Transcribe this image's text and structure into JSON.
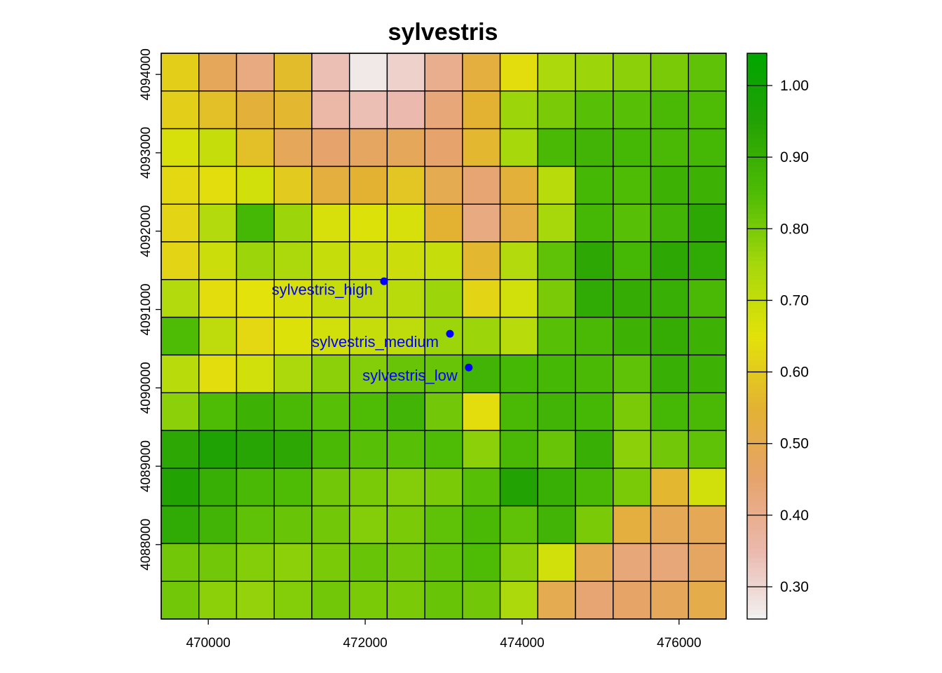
{
  "chart_data": {
    "type": "heatmap",
    "title": "sylvestris",
    "xlim": [
      469400,
      476600
    ],
    "ylim": [
      4087050,
      4094270
    ],
    "x_ticks": [
      {
        "value": 470000,
        "label": "470000"
      },
      {
        "value": 472000,
        "label": "472000"
      },
      {
        "value": 474000,
        "label": "474000"
      },
      {
        "value": 476000,
        "label": "476000"
      }
    ],
    "y_ticks": [
      {
        "value": 4088000,
        "label": "4088000"
      },
      {
        "value": 4089000,
        "label": "4089000"
      },
      {
        "value": 4090000,
        "label": "4090000"
      },
      {
        "value": 4091000,
        "label": "4091000"
      },
      {
        "value": 4092000,
        "label": "4092000"
      },
      {
        "value": 4093000,
        "label": "4093000"
      },
      {
        "value": 4094000,
        "label": "4094000"
      }
    ],
    "grid": {
      "x_min": 469400,
      "x_max": 476600,
      "y_min": 4087050,
      "y_max": 4094270,
      "ncols": 15,
      "nrows": 15
    },
    "values": [
      [
        0.61,
        0.48,
        0.42,
        0.57,
        0.34,
        0.27,
        0.31,
        0.4,
        0.53,
        0.64,
        0.74,
        0.76,
        0.78,
        0.8,
        0.83
      ],
      [
        0.61,
        0.58,
        0.54,
        0.56,
        0.36,
        0.34,
        0.35,
        0.43,
        0.55,
        0.76,
        0.8,
        0.84,
        0.84,
        0.86,
        0.85
      ],
      [
        0.67,
        0.7,
        0.58,
        0.48,
        0.45,
        0.47,
        0.48,
        0.45,
        0.56,
        0.75,
        0.86,
        0.88,
        0.87,
        0.86,
        0.87
      ],
      [
        0.63,
        0.64,
        0.68,
        0.6,
        0.53,
        0.55,
        0.59,
        0.5,
        0.44,
        0.54,
        0.72,
        0.87,
        0.85,
        0.89,
        0.89
      ],
      [
        0.62,
        0.73,
        0.87,
        0.76,
        0.67,
        0.66,
        0.67,
        0.55,
        0.42,
        0.52,
        0.75,
        0.87,
        0.84,
        0.88,
        0.93
      ],
      [
        0.62,
        0.69,
        0.76,
        0.74,
        0.7,
        0.69,
        0.69,
        0.7,
        0.56,
        0.73,
        0.83,
        0.93,
        0.87,
        0.93,
        0.92
      ],
      [
        0.73,
        0.64,
        0.65,
        0.67,
        0.7,
        0.71,
        0.72,
        0.76,
        0.62,
        0.68,
        0.8,
        0.92,
        0.91,
        0.9,
        0.86
      ],
      [
        0.85,
        0.71,
        0.63,
        0.66,
        0.68,
        0.7,
        0.71,
        0.76,
        0.76,
        0.72,
        0.84,
        0.86,
        0.89,
        0.91,
        0.89
      ],
      [
        0.72,
        0.64,
        0.68,
        0.74,
        0.78,
        0.79,
        0.82,
        0.82,
        0.88,
        0.87,
        0.87,
        0.86,
        0.83,
        0.9,
        0.89
      ],
      [
        0.78,
        0.85,
        0.89,
        0.86,
        0.84,
        0.85,
        0.88,
        0.81,
        0.64,
        0.86,
        0.88,
        0.87,
        0.8,
        0.87,
        0.86
      ],
      [
        0.93,
        0.96,
        0.94,
        0.93,
        0.86,
        0.84,
        0.84,
        0.85,
        0.78,
        0.86,
        0.82,
        0.9,
        0.78,
        0.81,
        0.83
      ],
      [
        0.95,
        0.9,
        0.86,
        0.85,
        0.81,
        0.8,
        0.79,
        0.8,
        0.84,
        0.95,
        0.9,
        0.86,
        0.8,
        0.56,
        0.68
      ],
      [
        0.92,
        0.88,
        0.83,
        0.82,
        0.81,
        0.79,
        0.8,
        0.83,
        0.86,
        0.83,
        0.88,
        0.8,
        0.53,
        0.49,
        0.49
      ],
      [
        0.81,
        0.81,
        0.79,
        0.78,
        0.8,
        0.82,
        0.81,
        0.83,
        0.85,
        0.78,
        0.68,
        0.5,
        0.43,
        0.43,
        0.47
      ],
      [
        0.81,
        0.78,
        0.77,
        0.79,
        0.81,
        0.8,
        0.8,
        0.82,
        0.81,
        0.74,
        0.5,
        0.44,
        0.46,
        0.48,
        0.51
      ]
    ],
    "points": [
      {
        "label": "sylvestris_high",
        "x": 472240,
        "y": 4091360
      },
      {
        "label": "sylvestris_medium",
        "x": 473080,
        "y": 4090690
      },
      {
        "label": "sylvestris_low",
        "x": 473320,
        "y": 4090260
      }
    ],
    "point_color": "#0000ff",
    "legend": {
      "min": 0.255,
      "max": 1.045,
      "breaks": [
        0.3,
        0.4,
        0.5,
        0.6,
        0.7,
        0.8,
        0.9,
        1.0
      ],
      "labels": [
        "0.30",
        "0.40",
        "0.50",
        "0.60",
        "0.70",
        "0.80",
        "0.90",
        "1.00"
      ],
      "position": "right"
    },
    "color_scale": [
      {
        "value": 0.255,
        "color": "#f2f2f2"
      },
      {
        "value": 0.35,
        "color": "#ebb9ae"
      },
      {
        "value": 0.45,
        "color": "#e6a36c"
      },
      {
        "value": 0.55,
        "color": "#e3b233"
      },
      {
        "value": 0.65,
        "color": "#e3e20a"
      },
      {
        "value": 0.75,
        "color": "#a6d80c"
      },
      {
        "value": 0.85,
        "color": "#4ebc05"
      },
      {
        "value": 0.95,
        "color": "#23a204"
      },
      {
        "value": 1.045,
        "color": "#00a600"
      }
    ]
  }
}
